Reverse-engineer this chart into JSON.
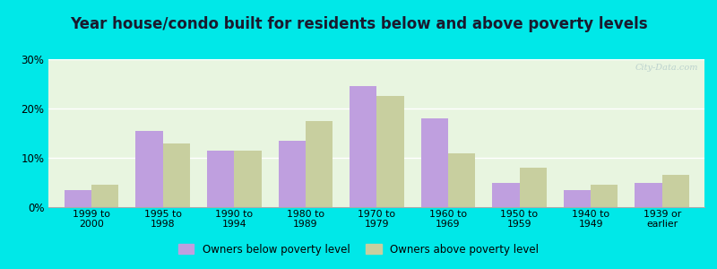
{
  "title": "Year house/condo built for residents below and above poverty levels",
  "categories": [
    "1999 to\n2000",
    "1995 to\n1998",
    "1990 to\n1994",
    "1980 to\n1989",
    "1970 to\n1979",
    "1960 to\n1969",
    "1950 to\n1959",
    "1940 to\n1949",
    "1939 or\nearlier"
  ],
  "below_poverty": [
    3.5,
    15.5,
    11.5,
    13.5,
    24.5,
    18.0,
    5.0,
    3.5,
    5.0
  ],
  "above_poverty": [
    4.5,
    13.0,
    11.5,
    17.5,
    22.5,
    11.0,
    8.0,
    4.5,
    6.5
  ],
  "below_color": "#bf9fdf",
  "above_color": "#c8cf9f",
  "plot_bg_color": "#e8f5e0",
  "outer_background": "#00e8e8",
  "ylabel_ticks": [
    "0%",
    "10%",
    "20%",
    "30%"
  ],
  "yticks": [
    0,
    10,
    20,
    30
  ],
  "ylim": [
    0,
    30
  ],
  "legend_below": "Owners below poverty level",
  "legend_above": "Owners above poverty level",
  "title_fontsize": 12,
  "bar_width": 0.38
}
